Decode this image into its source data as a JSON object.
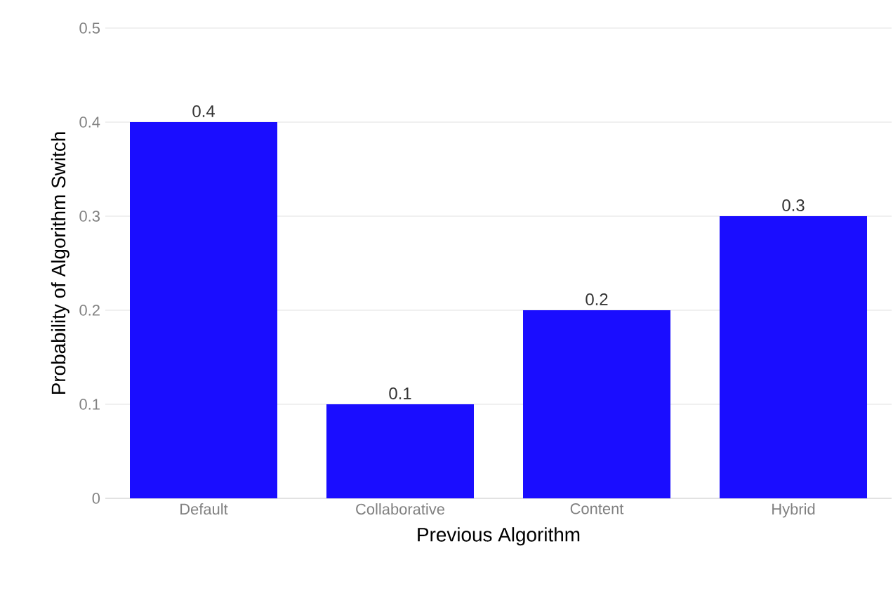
{
  "chart_data": {
    "type": "bar",
    "categories": [
      "Default",
      "Collaborative",
      "Content",
      "Hybrid"
    ],
    "values": [
      0.4,
      0.1,
      0.2,
      0.3
    ],
    "color": "#1a0dff",
    "xlabel": "Previous Algorithm",
    "ylabel": "Probability of Algorithm Switch",
    "ylim": [
      0,
      0.5
    ],
    "yticks": [
      0,
      0.1,
      0.2,
      0.3,
      0.4,
      0.5
    ],
    "grid": "y",
    "data_labels": true
  }
}
